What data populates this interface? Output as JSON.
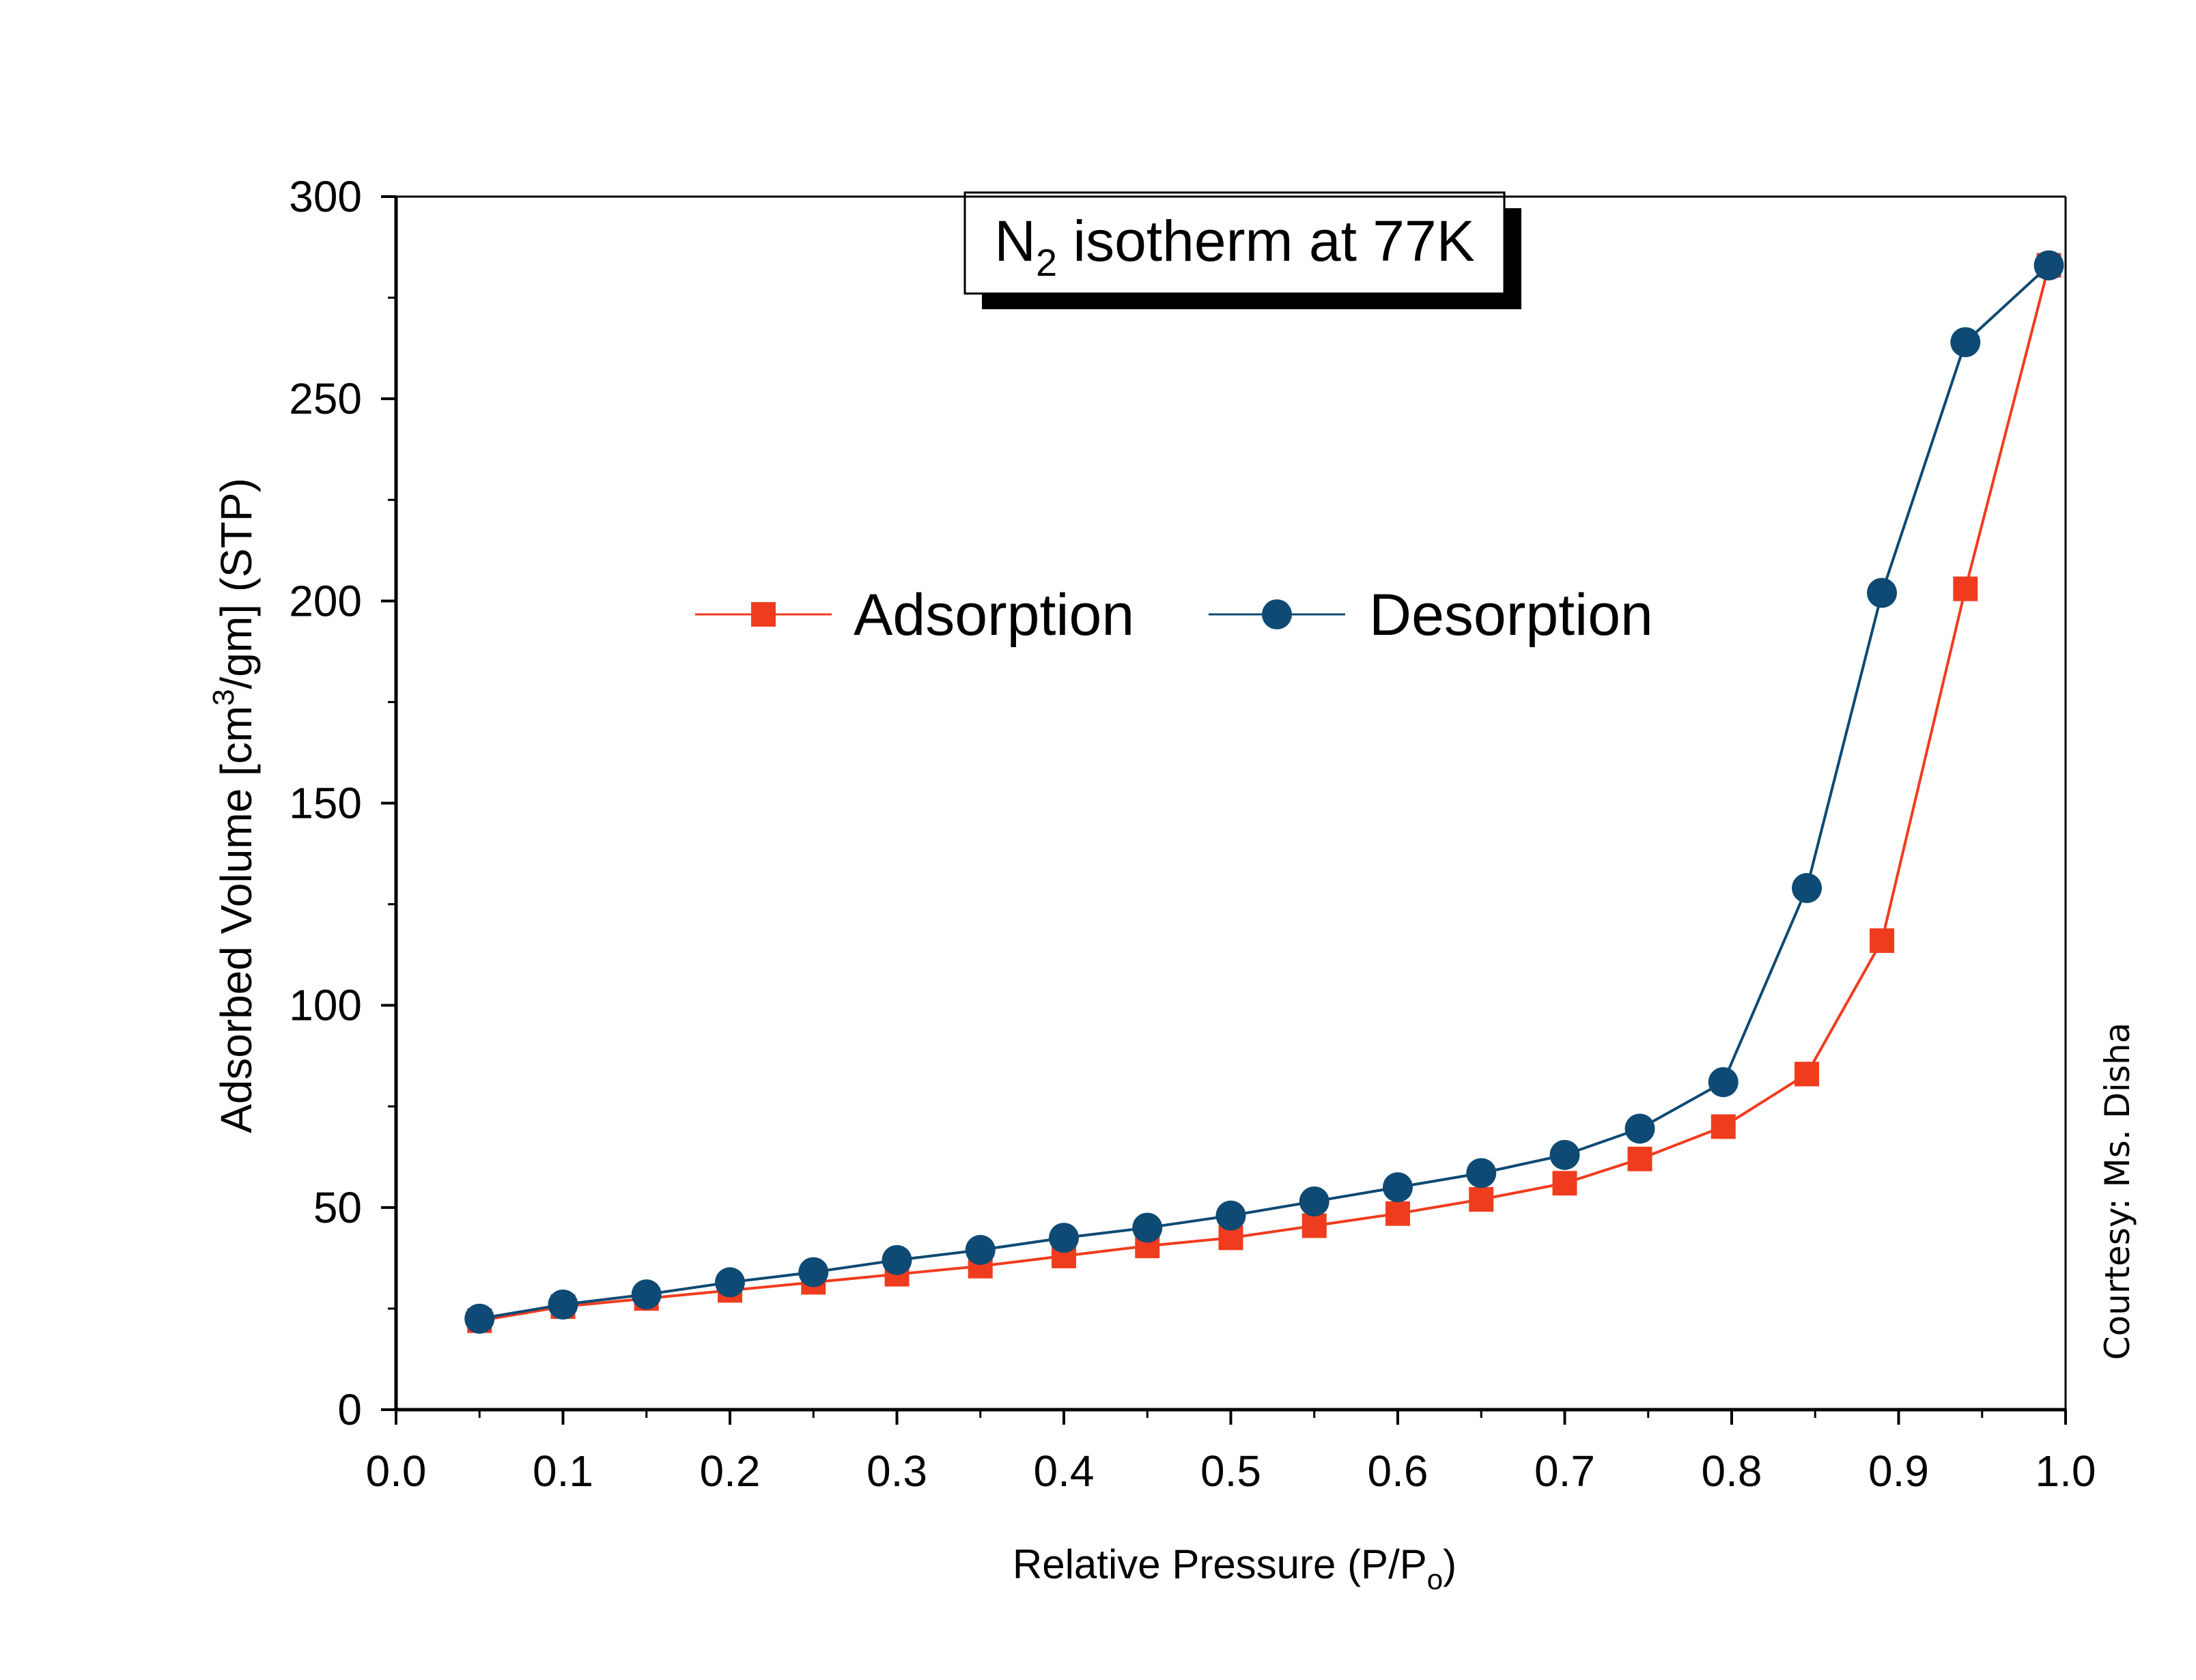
{
  "colors": {
    "adsorption": "#f03c1e",
    "desorption": "#0e4a73",
    "axis": "#000000",
    "background": "#ffffff"
  },
  "chart_data": {
    "type": "line",
    "title_main": "N",
    "title_sub": "2",
    "title_rest": " isotherm at 77K",
    "xlabel_main": "Relative Pressure (P/P",
    "xlabel_sub": "o",
    "xlabel_end": ")",
    "ylabel_main": "Adsorbed Volume [cm",
    "ylabel_sup": "3",
    "ylabel_end": "/gm] (STP)",
    "xlim": [
      0.0,
      1.0
    ],
    "ylim": [
      0,
      300
    ],
    "xticks": [
      "0.0",
      "0.1",
      "0.2",
      "0.3",
      "0.4",
      "0.5",
      "0.6",
      "0.7",
      "0.8",
      "0.9",
      "1.0"
    ],
    "yticks": [
      "0",
      "50",
      "100",
      "150",
      "200",
      "250",
      "300"
    ],
    "grid": false,
    "legend_position": "upper-center",
    "series": [
      {
        "name": "Adsorption",
        "marker": "square",
        "x": [
          0.05,
          0.1,
          0.15,
          0.2,
          0.25,
          0.3,
          0.35,
          0.4,
          0.45,
          0.5,
          0.55,
          0.6,
          0.65,
          0.7,
          0.745,
          0.795,
          0.845,
          0.89,
          0.94,
          0.99
        ],
        "y": [
          22,
          25.5,
          27.5,
          29.5,
          31.5,
          33.5,
          35.5,
          38,
          40.5,
          42.5,
          45.5,
          48.5,
          52,
          56,
          62,
          70,
          83,
          116,
          203,
          283
        ]
      },
      {
        "name": "Desorption",
        "marker": "circle",
        "x": [
          0.05,
          0.1,
          0.15,
          0.2,
          0.25,
          0.3,
          0.35,
          0.4,
          0.45,
          0.5,
          0.55,
          0.6,
          0.65,
          0.7,
          0.745,
          0.795,
          0.845,
          0.89,
          0.94,
          0.99
        ],
        "y": [
          22.5,
          26,
          28.5,
          31.5,
          34,
          37,
          39.5,
          42.5,
          45,
          48,
          51.5,
          55,
          58.5,
          63,
          69.5,
          81,
          129,
          202,
          264,
          283
        ]
      }
    ],
    "credit": "Courtesy: Ms. Disha"
  }
}
